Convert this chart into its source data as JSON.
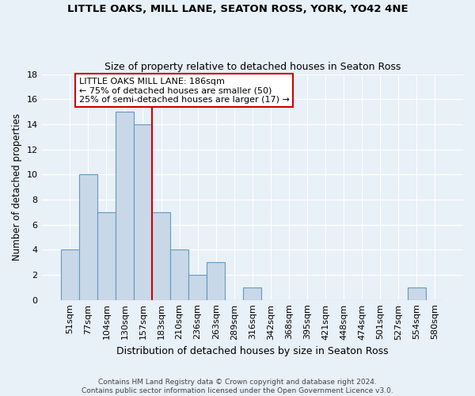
{
  "title": "LITTLE OAKS, MILL LANE, SEATON ROSS, YORK, YO42 4NE",
  "subtitle": "Size of property relative to detached houses in Seaton Ross",
  "xlabel": "Distribution of detached houses by size in Seaton Ross",
  "ylabel": "Number of detached properties",
  "bin_labels": [
    "51sqm",
    "77sqm",
    "104sqm",
    "130sqm",
    "157sqm",
    "183sqm",
    "210sqm",
    "236sqm",
    "263sqm",
    "289sqm",
    "316sqm",
    "342sqm",
    "368sqm",
    "395sqm",
    "421sqm",
    "448sqm",
    "474sqm",
    "501sqm",
    "527sqm",
    "554sqm",
    "580sqm"
  ],
  "bar_heights": [
    4,
    10,
    7,
    15,
    14,
    7,
    4,
    2,
    3,
    0,
    1,
    0,
    0,
    0,
    0,
    0,
    0,
    0,
    0,
    1,
    0
  ],
  "bar_color": "#c8d8e8",
  "bar_edge_color": "#6699bb",
  "vline_index": 5,
  "vline_color": "#cc0000",
  "annotation_text": "LITTLE OAKS MILL LANE: 186sqm\n← 75% of detached houses are smaller (50)\n25% of semi-detached houses are larger (17) →",
  "annotation_box_color": "white",
  "annotation_box_edge": "#cc0000",
  "ylim": [
    0,
    18
  ],
  "yticks": [
    0,
    2,
    4,
    6,
    8,
    10,
    12,
    14,
    16,
    18
  ],
  "footer": "Contains HM Land Registry data © Crown copyright and database right 2024.\nContains public sector information licensed under the Open Government Licence v3.0.",
  "background_color": "#e8f0f8",
  "grid_color": "white",
  "title_fontsize": 9.5,
  "subtitle_fontsize": 9,
  "ylabel_fontsize": 8.5,
  "xlabel_fontsize": 9,
  "tick_fontsize": 8,
  "annot_fontsize": 8,
  "footer_fontsize": 6.5
}
